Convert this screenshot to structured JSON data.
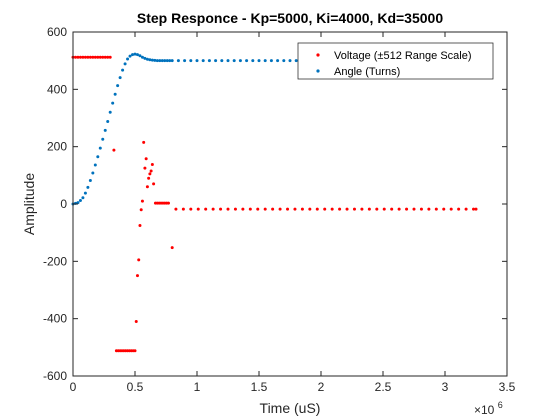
{
  "chart_data": {
    "type": "scatter",
    "title": "Step Responce - Kp=5000, Ki=4000, Kd=35000",
    "xlabel": "Time (uS)",
    "ylabel": "Amplitude",
    "xlim": [
      0,
      3500000
    ],
    "ylim": [
      -600,
      600
    ],
    "x_exponent_label": "×10",
    "x_exponent_power": "6",
    "xtick_values": [
      0,
      500000,
      1000000,
      1500000,
      2000000,
      2500000,
      3000000,
      3500000
    ],
    "xtick_labels": [
      "0",
      "0.5",
      "1",
      "1.5",
      "2",
      "2.5",
      "3",
      "3.5"
    ],
    "ytick_values": [
      -600,
      -400,
      -200,
      0,
      200,
      400,
      600
    ],
    "ytick_labels": [
      "-600",
      "-400",
      "-200",
      "0",
      "200",
      "400",
      "600"
    ],
    "grid": false,
    "legend_position": "top-right",
    "series": [
      {
        "name": "Voltage (±512 Range Scale)",
        "color": "#ff0000",
        "points": [
          [
            0,
            512
          ],
          [
            20000,
            512
          ],
          [
            40000,
            512
          ],
          [
            60000,
            512
          ],
          [
            80000,
            512
          ],
          [
            100000,
            512
          ],
          [
            120000,
            512
          ],
          [
            140000,
            512
          ],
          [
            160000,
            512
          ],
          [
            180000,
            512
          ],
          [
            200000,
            512
          ],
          [
            220000,
            512
          ],
          [
            240000,
            512
          ],
          [
            260000,
            512
          ],
          [
            280000,
            512
          ],
          [
            300000,
            512
          ],
          [
            330000,
            188
          ],
          [
            350000,
            -512
          ],
          [
            365000,
            -512
          ],
          [
            380000,
            -512
          ],
          [
            395000,
            -512
          ],
          [
            410000,
            -512
          ],
          [
            425000,
            -512
          ],
          [
            440000,
            -512
          ],
          [
            455000,
            -512
          ],
          [
            470000,
            -512
          ],
          [
            485000,
            -512
          ],
          [
            500000,
            -512
          ],
          [
            510000,
            -410
          ],
          [
            520000,
            -250
          ],
          [
            530000,
            -195
          ],
          [
            540000,
            -75
          ],
          [
            550000,
            -20
          ],
          [
            560000,
            10
          ],
          [
            570000,
            215
          ],
          [
            580000,
            125
          ],
          [
            590000,
            158
          ],
          [
            600000,
            60
          ],
          [
            610000,
            90
          ],
          [
            620000,
            105
          ],
          [
            630000,
            115
          ],
          [
            640000,
            138
          ],
          [
            650000,
            70
          ],
          [
            665000,
            3
          ],
          [
            680000,
            3
          ],
          [
            695000,
            3
          ],
          [
            710000,
            3
          ],
          [
            725000,
            3
          ],
          [
            740000,
            3
          ],
          [
            755000,
            3
          ],
          [
            770000,
            3
          ],
          [
            800000,
            -152
          ],
          [
            830000,
            -18
          ],
          [
            890000,
            -18
          ],
          [
            950000,
            -18
          ],
          [
            1010000,
            -18
          ],
          [
            1070000,
            -18
          ],
          [
            1130000,
            -18
          ],
          [
            1190000,
            -18
          ],
          [
            1250000,
            -18
          ],
          [
            1310000,
            -18
          ],
          [
            1370000,
            -18
          ],
          [
            1430000,
            -18
          ],
          [
            1490000,
            -18
          ],
          [
            1550000,
            -18
          ],
          [
            1610000,
            -18
          ],
          [
            1670000,
            -18
          ],
          [
            1730000,
            -18
          ],
          [
            1790000,
            -18
          ],
          [
            1850000,
            -18
          ],
          [
            1910000,
            -18
          ],
          [
            1970000,
            -18
          ],
          [
            2030000,
            -18
          ],
          [
            2090000,
            -18
          ],
          [
            2150000,
            -18
          ],
          [
            2210000,
            -18
          ],
          [
            2270000,
            -18
          ],
          [
            2330000,
            -18
          ],
          [
            2390000,
            -18
          ],
          [
            2450000,
            -18
          ],
          [
            2510000,
            -18
          ],
          [
            2570000,
            -18
          ],
          [
            2630000,
            -18
          ],
          [
            2690000,
            -18
          ],
          [
            2750000,
            -18
          ],
          [
            2810000,
            -18
          ],
          [
            2870000,
            -18
          ],
          [
            2930000,
            -18
          ],
          [
            2990000,
            -18
          ],
          [
            3050000,
            -18
          ],
          [
            3110000,
            -18
          ],
          [
            3170000,
            -18
          ],
          [
            3230000,
            -18
          ],
          [
            3250000,
            -18
          ]
        ]
      },
      {
        "name": "Angle (Turns)",
        "color": "#0072bd",
        "points": [
          [
            0,
            0
          ],
          [
            20000,
            2
          ],
          [
            40000,
            5
          ],
          [
            60000,
            12
          ],
          [
            80000,
            22
          ],
          [
            100000,
            38
          ],
          [
            120000,
            58
          ],
          [
            140000,
            82
          ],
          [
            160000,
            108
          ],
          [
            180000,
            136
          ],
          [
            200000,
            165
          ],
          [
            220000,
            195
          ],
          [
            240000,
            226
          ],
          [
            260000,
            257
          ],
          [
            280000,
            288
          ],
          [
            300000,
            320
          ],
          [
            320000,
            352
          ],
          [
            340000,
            383
          ],
          [
            360000,
            413
          ],
          [
            380000,
            441
          ],
          [
            400000,
            467
          ],
          [
            420000,
            489
          ],
          [
            440000,
            506
          ],
          [
            460000,
            516
          ],
          [
            480000,
            521
          ],
          [
            500000,
            523
          ],
          [
            520000,
            521
          ],
          [
            540000,
            517
          ],
          [
            560000,
            512
          ],
          [
            580000,
            508
          ],
          [
            600000,
            505
          ],
          [
            620000,
            503
          ],
          [
            640000,
            502
          ],
          [
            660000,
            501
          ],
          [
            680000,
            500
          ],
          [
            700000,
            500
          ],
          [
            720000,
            500
          ],
          [
            740000,
            500
          ],
          [
            760000,
            500
          ],
          [
            780000,
            500
          ],
          [
            800000,
            500
          ],
          [
            850000,
            500
          ],
          [
            900000,
            500
          ],
          [
            950000,
            500
          ],
          [
            1000000,
            500
          ],
          [
            1050000,
            500
          ],
          [
            1100000,
            500
          ],
          [
            1150000,
            500
          ],
          [
            1200000,
            500
          ],
          [
            1250000,
            500
          ],
          [
            1300000,
            500
          ],
          [
            1350000,
            500
          ],
          [
            1400000,
            500
          ],
          [
            1450000,
            500
          ],
          [
            1500000,
            500
          ],
          [
            1550000,
            500
          ],
          [
            1600000,
            500
          ],
          [
            1650000,
            500
          ],
          [
            1700000,
            500
          ],
          [
            1750000,
            500
          ],
          [
            1800000,
            500
          ],
          [
            1850000,
            500
          ],
          [
            1900000,
            500
          ],
          [
            1950000,
            500
          ],
          [
            2000000,
            500
          ],
          [
            2050000,
            500
          ],
          [
            2100000,
            500
          ],
          [
            2150000,
            500
          ],
          [
            2200000,
            500
          ],
          [
            2250000,
            500
          ],
          [
            2300000,
            500
          ],
          [
            2350000,
            500
          ],
          [
            2400000,
            500
          ],
          [
            2450000,
            500
          ],
          [
            2500000,
            500
          ],
          [
            2550000,
            500
          ],
          [
            2600000,
            500
          ],
          [
            2650000,
            500
          ],
          [
            2700000,
            500
          ],
          [
            2750000,
            500
          ],
          [
            2800000,
            500
          ],
          [
            2850000,
            500
          ],
          [
            2900000,
            500
          ],
          [
            2950000,
            500
          ],
          [
            3000000,
            500
          ],
          [
            3050000,
            500
          ],
          [
            3100000,
            500
          ],
          [
            3150000,
            500
          ],
          [
            3200000,
            500
          ],
          [
            3250000,
            500
          ]
        ]
      }
    ]
  }
}
